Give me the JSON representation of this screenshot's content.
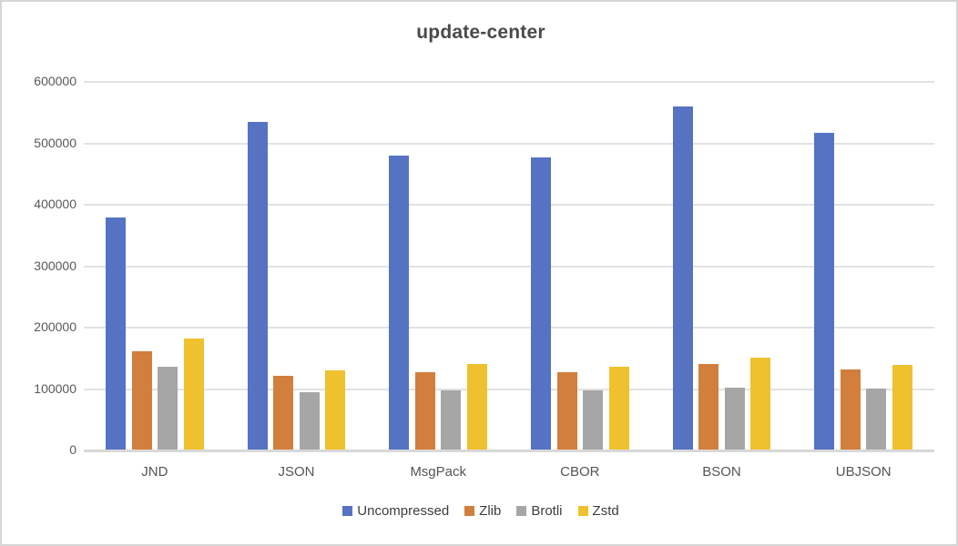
{
  "page": {
    "background_color": "#ffffff",
    "frame_border_color": "#d6d6d6"
  },
  "chart_data": {
    "type": "bar",
    "title": "update-center",
    "xlabel": "",
    "ylabel": "",
    "categories": [
      "JND",
      "JSON",
      "MsgPack",
      "CBOR",
      "BSON",
      "UBJSON"
    ],
    "series": [
      {
        "name": "Uncompressed",
        "color": "#5573C2",
        "values": [
          378000,
          534000,
          478000,
          475000,
          558000,
          515000
        ]
      },
      {
        "name": "Zlib",
        "color": "#D27E3C",
        "values": [
          160000,
          120000,
          126000,
          126000,
          139000,
          130000
        ]
      },
      {
        "name": "Brotli",
        "color": "#A6A6A6",
        "values": [
          135000,
          93000,
          96000,
          96000,
          101000,
          99000
        ]
      },
      {
        "name": "Zstd",
        "color": "#EFC12E",
        "values": [
          181000,
          129000,
          139000,
          135000,
          150000,
          138000
        ]
      }
    ],
    "ylim": [
      0,
      600000
    ],
    "ytick_step": 100000,
    "ytick_labels": [
      "0",
      "100000",
      "200000",
      "300000",
      "400000",
      "500000",
      "600000"
    ],
    "grid": "horizontal",
    "legend_position": "bottom",
    "colors": {
      "title_text": "#4a4a4a",
      "tick_text": "#595959",
      "category_text": "#555555",
      "legend_text": "#3d3d3d",
      "gridline": "#e2e2e2",
      "axis_line": "#d8d8d8"
    }
  }
}
